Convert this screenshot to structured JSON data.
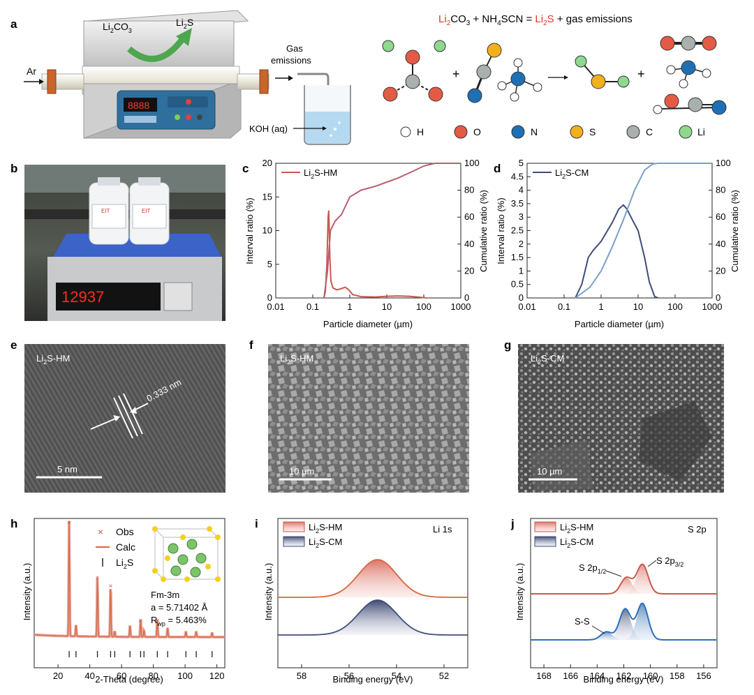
{
  "colors": {
    "hm": "#c8594d",
    "hm_dark": "#b34a40",
    "cm": "#3e4d7a",
    "cm_light": "#7aa0c8",
    "li": "#8fd98f",
    "o": "#e35b45",
    "n": "#1f6fb5",
    "s": "#f2b01e",
    "c": "#a9b0ad",
    "h": "#ffffff"
  },
  "panel_a": {
    "letter": "a",
    "reaction": {
      "r1": "Li",
      "r1s": "2",
      "r2": "CO",
      "r2s": "3",
      "plus1": " + NH",
      "nh4": "4",
      "scn": "SCN = ",
      "p1": "Li",
      "p1s": "2",
      "p2": "S",
      "rest": " + gas emissions"
    },
    "furnace_in_1": "Li",
    "furnace_in_s": "2",
    "furnace_in_2": "CO",
    "furnace_in_s2": "3",
    "furnace_out_1": "Li",
    "furnace_out_s": "2",
    "furnace_out_2": "S",
    "ar": "Ar",
    "display": "8888",
    "gas_1": "Gas",
    "gas_2": "emissions",
    "koh": "KOH (aq)",
    "legend": [
      {
        "label": "H",
        "color": "#ffffff"
      },
      {
        "label": "O",
        "color": "#e35b45"
      },
      {
        "label": "N",
        "color": "#1f6fb5"
      },
      {
        "label": "S",
        "color": "#f2b01e"
      },
      {
        "label": "C",
        "color": "#a9b0ad"
      },
      {
        "label": "Li",
        "color": "#8fd98f"
      }
    ]
  },
  "panel_b": {
    "letter": "b",
    "scale_reading": "12937",
    "bottle_label": "EIT"
  },
  "panel_c": {
    "letter": "c",
    "xlabel": "Particle diameter (µm)",
    "ylabel_left": "Interval ratio (%)",
    "ylabel_right": "Cumulative ratio (%)",
    "legend_1": "Li",
    "legend_s": "2",
    "legend_2": "S-HM",
    "xticks": [
      "0.01",
      "0.1",
      "1",
      "10",
      "100",
      "1000"
    ],
    "yticks_left": [
      "0",
      "5",
      "10",
      "15",
      "20"
    ],
    "yticks_right": [
      "0",
      "20",
      "40",
      "60",
      "80",
      "100"
    ]
  },
  "panel_d": {
    "letter": "d",
    "xlabel": "Particle diameter (µm)",
    "ylabel_left": "Interval ratio (%)",
    "ylabel_right": "Cumulative ratio (%)",
    "legend_1": "Li",
    "legend_s": "2",
    "legend_2": "S-CM",
    "xticks": [
      "0.01",
      "0.1",
      "1",
      "10",
      "100",
      "1000"
    ],
    "yticks_left": [
      "0",
      "0.5",
      "1",
      "1.5",
      "2",
      "2.5",
      "3",
      "3.5",
      "4",
      "4.5",
      "5"
    ],
    "yticks_right": [
      "0",
      "20",
      "40",
      "60",
      "80",
      "100"
    ]
  },
  "panel_e": {
    "letter": "e",
    "label_1": "Li",
    "label_s": "2",
    "label_2": "S-HM",
    "d_spacing": "0.333 nm",
    "scale": "5 nm"
  },
  "panel_f": {
    "letter": "f",
    "label_1": "Li",
    "label_s": "2",
    "label_2": "S-HM",
    "scale": "10 µm"
  },
  "panel_g": {
    "letter": "g",
    "label_1": "Li",
    "label_s": "2",
    "label_2": "S-CM",
    "scale": "10 µm"
  },
  "panel_h": {
    "letter": "h",
    "xlabel": "2-Theta (degree)",
    "ylabel": "Intensity (a.u.)",
    "legend_obs": "Obs",
    "legend_calc": "Calc",
    "legend_ref_1": "Li",
    "legend_ref_s": "2",
    "legend_ref_2": "S",
    "space_group": "Fm-3m",
    "lattice": "a = 5.71402 Å",
    "rwp_1": "R",
    "rwp_s": "wp",
    "rwp_2": " = 5.463%",
    "xticks": [
      "20",
      "40",
      "60",
      "80",
      "100",
      "120"
    ]
  },
  "panel_i": {
    "letter": "i",
    "region": "Li 1s",
    "xlabel": "Binding energy (eV)",
    "ylabel": "Intensity (a.u.)",
    "legend_hm_1": "Li",
    "legend_hm_s": "2",
    "legend_hm_2": "S-HM",
    "legend_cm_1": "Li",
    "legend_cm_s": "2",
    "legend_cm_2": "S-CM",
    "xticks": [
      "58",
      "56",
      "54",
      "52"
    ]
  },
  "panel_j": {
    "letter": "j",
    "region": "S 2p",
    "xlabel": "Binding energy (eV)",
    "ylabel": "Intensity (a.u.)",
    "legend_hm_1": "Li",
    "legend_hm_s": "2",
    "legend_hm_2": "S-HM",
    "legend_cm_1": "Li",
    "legend_cm_s": "2",
    "legend_cm_2": "S-CM",
    "peak_12": "S 2p",
    "peak_12_s": "1/2",
    "peak_32": "S 2p",
    "peak_32_s": "3/2",
    "ss": "S-S",
    "xticks": [
      "168",
      "166",
      "164",
      "162",
      "160",
      "158",
      "156"
    ]
  },
  "chart_data": [
    {
      "panel": "c",
      "type": "line",
      "xscale": "log",
      "xlim": [
        0.01,
        1000
      ],
      "ylim": [
        0,
        20
      ],
      "y2lim": [
        0,
        100
      ],
      "series": [
        {
          "name": "Li2S-HM",
          "axis": "left",
          "x": [
            0.2,
            0.22,
            0.24,
            0.26,
            0.27,
            0.29,
            0.31,
            0.35,
            0.45,
            0.6,
            0.75,
            0.9,
            1.2,
            2,
            5,
            10,
            20,
            40,
            80,
            120
          ],
          "y": [
            0,
            1,
            5,
            12,
            13,
            6,
            2.5,
            1.5,
            1.2,
            1.4,
            1.6,
            1.3,
            0.5,
            0.2,
            0.15,
            0.25,
            0.3,
            0.25,
            0.1,
            0
          ]
        },
        {
          "axis": "right",
          "x": [
            0.2,
            0.25,
            0.3,
            0.4,
            0.6,
            1,
            2,
            5,
            10,
            20,
            50,
            100,
            200,
            1000
          ],
          "y": [
            0,
            20,
            50,
            57,
            62,
            75,
            80,
            83,
            86,
            89,
            94,
            98,
            100,
            100
          ]
        }
      ]
    },
    {
      "panel": "d",
      "type": "line",
      "xscale": "log",
      "xlim": [
        0.01,
        1000
      ],
      "ylim": [
        0,
        5
      ],
      "y2lim": [
        0,
        100
      ],
      "series": [
        {
          "name": "Li2S-CM",
          "axis": "left",
          "x": [
            0.2,
            0.3,
            0.45,
            0.6,
            1,
            2,
            3,
            4,
            5,
            7,
            10,
            15,
            20,
            28,
            35
          ],
          "y": [
            0,
            0.5,
            1.5,
            1.75,
            2.1,
            2.8,
            3.3,
            3.45,
            3.3,
            2.9,
            2.5,
            1.5,
            0.6,
            0.05,
            0
          ]
        },
        {
          "axis": "right",
          "x": [
            0.2,
            0.5,
            1,
            2,
            4,
            8,
            15,
            25,
            35,
            1000
          ],
          "y": [
            0,
            8,
            20,
            38,
            58,
            80,
            95,
            99.5,
            100,
            100
          ]
        }
      ]
    },
    {
      "panel": "h",
      "type": "line",
      "xlim": [
        5,
        125
      ],
      "peaks": [
        {
          "x": 27,
          "h": 1.0
        },
        {
          "x": 31.3,
          "h": 0.1
        },
        {
          "x": 44.8,
          "h": 0.52
        },
        {
          "x": 53.1,
          "h": 0.45
        },
        {
          "x": 55.7,
          "h": 0.05
        },
        {
          "x": 65.3,
          "h": 0.1
        },
        {
          "x": 72.0,
          "h": 0.15
        },
        {
          "x": 74.1,
          "h": 0.06
        },
        {
          "x": 82.5,
          "h": 0.15
        },
        {
          "x": 89.0,
          "h": 0.08
        },
        {
          "x": 100.5,
          "h": 0.05
        },
        {
          "x": 107.0,
          "h": 0.05
        },
        {
          "x": 117.0,
          "h": 0.04
        }
      ],
      "reflections": [
        27,
        31.3,
        44.8,
        53.1,
        55.7,
        65.3,
        72.0,
        74.1,
        82.5,
        89.0,
        100.5,
        107.0,
        117.0
      ]
    },
    {
      "panel": "i",
      "type": "area",
      "xlim": [
        59,
        51
      ],
      "reversed": true,
      "series": [
        {
          "name": "Li2S-HM",
          "center": 54.8,
          "fwhm": 1.9
        },
        {
          "name": "Li2S-CM",
          "center": 54.8,
          "fwhm": 1.9
        }
      ]
    },
    {
      "panel": "j",
      "type": "area",
      "xlim": [
        169,
        155
      ],
      "reversed": true,
      "series": [
        {
          "name": "Li2S-HM",
          "peaks": [
            {
              "label": "S 2p1/2",
              "center": 161.8,
              "h": 0.55
            },
            {
              "label": "S 2p3/2",
              "center": 160.6,
              "h": 1.0
            }
          ]
        },
        {
          "name": "Li2S-CM",
          "peaks": [
            {
              "label": "S-S",
              "center": 163.3,
              "h": 0.22
            },
            {
              "label": "S 2p1/2",
              "center": 161.9,
              "h": 0.85
            },
            {
              "label": "S 2p3/2",
              "center": 160.6,
              "h": 1.0
            }
          ]
        }
      ]
    }
  ]
}
